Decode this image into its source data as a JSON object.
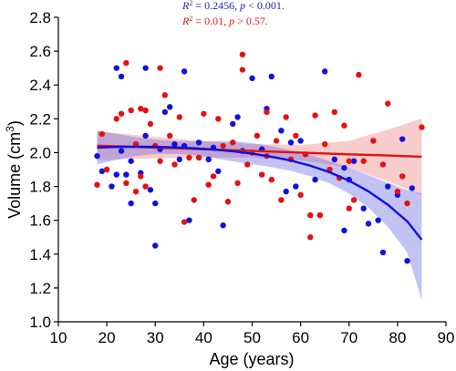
{
  "chart_data": {
    "type": "scatter",
    "xlabel": "Age (years)",
    "ylabel_text": "Volume (cm",
    "ylabel_sup": "3",
    "ylabel_close": ")",
    "xlim": [
      10,
      90
    ],
    "ylim": [
      1.0,
      2.8
    ],
    "xticks": [
      10,
      20,
      30,
      40,
      50,
      60,
      70,
      80,
      90
    ],
    "yticks": [
      1.0,
      1.2,
      1.4,
      1.6,
      1.8,
      2.0,
      2.2,
      2.4,
      2.6,
      2.8
    ],
    "grid": false,
    "annotations": [
      {
        "r2_label": "R",
        "r2_sup": "2",
        "r2_value": " = 0.2456, ",
        "p_label": "p",
        "p_value": " < 0.001.",
        "color": "#1f1fb5"
      },
      {
        "r2_label": "R",
        "r2_sup": "2",
        "r2_value": " = 0.01, ",
        "p_label": "p",
        "p_value": " > 0.57.",
        "color": "#e31a1c"
      }
    ],
    "series": [
      {
        "color": "#1010e0",
        "band_color": "#6a6ae0",
        "points": [
          [
            18,
            1.98
          ],
          [
            19,
            1.89
          ],
          [
            21,
            1.8
          ],
          [
            22,
            2.5
          ],
          [
            22,
            1.87
          ],
          [
            23,
            2.45
          ],
          [
            23,
            2.01
          ],
          [
            24,
            1.87
          ],
          [
            25,
            1.95
          ],
          [
            25,
            1.7
          ],
          [
            26,
            2.05
          ],
          [
            27,
            1.88
          ],
          [
            28,
            2.5
          ],
          [
            28,
            2.1
          ],
          [
            29,
            1.78
          ],
          [
            30,
            1.45
          ],
          [
            30,
            1.7
          ],
          [
            31,
            2.02
          ],
          [
            32,
            2.24
          ],
          [
            33,
            2.27
          ],
          [
            34,
            2.05
          ],
          [
            35,
            1.96
          ],
          [
            36,
            2.48
          ],
          [
            36,
            2.04
          ],
          [
            37,
            1.6
          ],
          [
            39,
            2.06
          ],
          [
            41,
            1.96
          ],
          [
            42,
            2.03
          ],
          [
            43,
            1.89
          ],
          [
            44,
            1.57
          ],
          [
            46,
            2.17
          ],
          [
            47,
            2.21
          ],
          [
            48,
            2.01
          ],
          [
            50,
            2.44
          ],
          [
            52,
            2.02
          ],
          [
            53,
            2.26
          ],
          [
            54,
            2.45
          ],
          [
            56,
            2.13
          ],
          [
            57,
            1.77
          ],
          [
            58,
            2.06
          ],
          [
            59,
            1.8
          ],
          [
            60,
            2.07
          ],
          [
            63,
            1.84
          ],
          [
            64,
            1.63
          ],
          [
            65,
            2.48
          ],
          [
            67,
            1.96
          ],
          [
            69,
            1.54
          ],
          [
            69,
            1.91
          ],
          [
            70,
            1.84
          ],
          [
            71,
            1.95
          ],
          [
            73,
            1.67
          ],
          [
            74,
            1.58
          ],
          [
            76,
            1.6
          ],
          [
            77,
            1.41
          ],
          [
            78,
            1.8
          ],
          [
            80,
            1.75
          ],
          [
            81,
            2.08
          ],
          [
            82,
            1.36
          ],
          [
            83,
            1.79
          ]
        ],
        "fit_x": [
          18,
          22,
          26,
          30,
          34,
          38,
          42,
          46,
          50,
          54,
          58,
          62,
          66,
          70,
          74,
          78,
          82,
          85
        ],
        "fit_y": [
          2.03,
          2.034,
          2.035,
          2.034,
          2.031,
          2.026,
          2.018,
          2.008,
          1.994,
          1.976,
          1.953,
          1.923,
          1.884,
          1.834,
          1.771,
          1.692,
          1.594,
          1.485
        ],
        "ci_low": [
          1.93,
          1.958,
          1.98,
          1.992,
          1.993,
          1.985,
          1.968,
          1.948,
          1.932,
          1.914,
          1.892,
          1.861,
          1.818,
          1.758,
          1.675,
          1.562,
          1.41,
          1.13
        ],
        "ci_high": [
          2.13,
          2.11,
          2.09,
          2.076,
          2.069,
          2.067,
          2.068,
          2.068,
          2.056,
          2.038,
          2.014,
          1.985,
          1.95,
          1.91,
          1.867,
          1.822,
          1.778,
          1.76
        ]
      },
      {
        "color": "#e61010",
        "band_color": "#f08080",
        "points": [
          [
            18,
            1.81
          ],
          [
            19,
            2.11
          ],
          [
            20,
            1.9
          ],
          [
            22,
            2.2
          ],
          [
            23,
            2.23
          ],
          [
            24,
            2.53
          ],
          [
            24,
            1.82
          ],
          [
            25,
            2.25
          ],
          [
            26,
            2.05
          ],
          [
            26,
            1.77
          ],
          [
            27,
            1.86
          ],
          [
            27,
            2.26
          ],
          [
            28,
            2.25
          ],
          [
            28,
            1.8
          ],
          [
            29,
            2.17
          ],
          [
            30,
            2.04
          ],
          [
            31,
            2.5
          ],
          [
            31,
            1.95
          ],
          [
            32,
            2.34
          ],
          [
            33,
            2.1
          ],
          [
            34,
            1.93
          ],
          [
            35,
            2.21
          ],
          [
            36,
            1.59
          ],
          [
            37,
            1.97
          ],
          [
            38,
            1.72
          ],
          [
            39,
            1.97
          ],
          [
            40,
            2.23
          ],
          [
            41,
            1.81
          ],
          [
            42,
            1.86
          ],
          [
            43,
            2.2
          ],
          [
            44,
            2.04
          ],
          [
            45,
            1.71
          ],
          [
            46,
            2.06
          ],
          [
            47,
            1.82
          ],
          [
            48,
            2.58
          ],
          [
            48,
            2.49
          ],
          [
            49,
            1.93
          ],
          [
            50,
            2.0
          ],
          [
            51,
            2.1
          ],
          [
            52,
            1.87
          ],
          [
            53,
            2.24
          ],
          [
            53,
            1.98
          ],
          [
            54,
            1.84
          ],
          [
            55,
            2.07
          ],
          [
            56,
            1.72
          ],
          [
            57,
            2.21
          ],
          [
            58,
            1.96
          ],
          [
            59,
            2.1
          ],
          [
            60,
            1.75
          ],
          [
            61,
            1.99
          ],
          [
            62,
            1.63
          ],
          [
            62,
            1.5
          ],
          [
            63,
            2.22
          ],
          [
            64,
            1.63
          ],
          [
            65,
            2.05
          ],
          [
            66,
            1.9
          ],
          [
            67,
            2.24
          ],
          [
            68,
            1.85
          ],
          [
            69,
            2.16
          ],
          [
            70,
            1.95
          ],
          [
            70,
            1.67
          ],
          [
            71,
            1.72
          ],
          [
            72,
            2.46
          ],
          [
            73,
            1.95
          ],
          [
            75,
            2.07
          ],
          [
            77,
            1.93
          ],
          [
            78,
            2.29
          ],
          [
            80,
            1.77
          ],
          [
            81,
            1.86
          ],
          [
            82,
            1.7
          ],
          [
            85,
            2.15
          ]
        ],
        "fit_x": [
          18,
          30,
          40,
          50,
          60,
          70,
          78,
          85
        ],
        "fit_y": [
          2.041,
          2.03,
          2.02,
          2.01,
          2.0,
          1.99,
          1.983,
          1.976
        ],
        "ci_low": [
          1.955,
          1.967,
          1.972,
          1.97,
          1.955,
          1.91,
          1.83,
          1.75
        ],
        "ci_high": [
          2.127,
          2.093,
          2.068,
          2.05,
          2.045,
          2.07,
          2.136,
          2.202
        ]
      }
    ]
  }
}
